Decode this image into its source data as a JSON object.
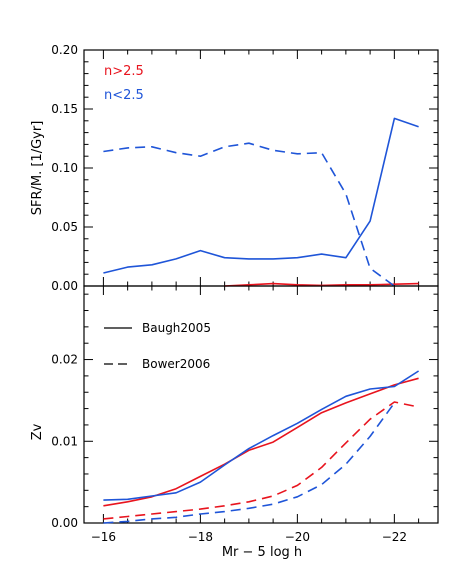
{
  "chart_data": [
    {
      "type": "line",
      "ylabel": "SFR/M. [1/Gyr]",
      "xlim": [
        -15.6,
        -22.9
      ],
      "ylim": [
        0,
        0.2
      ],
      "xticks": [
        -16,
        -18,
        -20,
        -22
      ],
      "xtick_labels": [
        "",
        "",
        "",
        ""
      ],
      "yticks": [
        0,
        0.05,
        0.1,
        0.15,
        0.2
      ],
      "ytick_labels": [
        "0.00",
        "0.05",
        "0.10",
        "0.15",
        "0.20"
      ],
      "legend_position": "top-left",
      "series": [
        {
          "name": "n>2.5",
          "color": "#e8141e",
          "style": "solid",
          "x": [
            -18.5,
            -19,
            -19.5,
            -20,
            -20.5,
            -21,
            -21.5,
            -22,
            -22.5
          ],
          "y": [
            0.0,
            0.001,
            0.002,
            0.001,
            0.0005,
            0.001,
            0.001,
            0.0015,
            0.002
          ]
        },
        {
          "name": "n<2.5",
          "color": "#1f55d8",
          "style": "solid",
          "x": [
            -16,
            -16.5,
            -17,
            -17.5,
            -18,
            -18.5,
            -19,
            -19.5,
            -20,
            -20.5,
            -21,
            -21.5,
            -22,
            -22.5
          ],
          "y": [
            0.011,
            0.016,
            0.018,
            0.023,
            0.03,
            0.024,
            0.023,
            0.023,
            0.024,
            0.027,
            0.024,
            0.055,
            0.142,
            0.135
          ]
        },
        {
          "name": "",
          "color": "#1f55d8",
          "style": "dashed",
          "x": [
            -16,
            -16.5,
            -17,
            -17.5,
            -18,
            -18.5,
            -19,
            -19.5,
            -20,
            -20.5,
            -21,
            -21.5,
            -22
          ],
          "y": [
            0.114,
            0.117,
            0.118,
            0.113,
            0.11,
            0.118,
            0.121,
            0.115,
            0.112,
            0.113,
            0.078,
            0.015,
            0.0
          ]
        }
      ]
    },
    {
      "type": "line",
      "xlabel": "Mr − 5 log h",
      "ylabel": "Zv",
      "xlim": [
        -15.6,
        -22.9
      ],
      "ylim": [
        0,
        0.029
      ],
      "xticks": [
        -16,
        -18,
        -20,
        -22
      ],
      "xtick_labels": [
        "−16",
        "−18",
        "−20",
        "−22"
      ],
      "yticks": [
        0,
        0.01,
        0.02
      ],
      "ytick_labels": [
        "0.00",
        "0.01",
        "0.02"
      ],
      "legend_position": "top-left",
      "legend": [
        {
          "label": "Baugh2005",
          "style": "solid"
        },
        {
          "label": "Bower2006",
          "style": "dashed"
        }
      ],
      "series": [
        {
          "name": "",
          "color": "#e8141e",
          "style": "solid",
          "x": [
            -16,
            -16.5,
            -17,
            -17.5,
            -18,
            -18.5,
            -19,
            -19.5,
            -20,
            -20.5,
            -21,
            -21.5,
            -22,
            -22.5
          ],
          "y": [
            0.0021,
            0.0026,
            0.0032,
            0.0042,
            0.0057,
            0.0072,
            0.0089,
            0.0099,
            0.0117,
            0.0135,
            0.0147,
            0.0158,
            0.0169,
            0.0177
          ]
        },
        {
          "name": "",
          "color": "#1f55d8",
          "style": "solid",
          "x": [
            -16,
            -16.5,
            -17,
            -17.5,
            -18,
            -18.5,
            -19,
            -19.5,
            -20,
            -20.5,
            -21,
            -21.5,
            -22,
            -22.5
          ],
          "y": [
            0.0028,
            0.0029,
            0.0033,
            0.0037,
            0.005,
            0.0071,
            0.0091,
            0.0107,
            0.0122,
            0.0139,
            0.0155,
            0.0164,
            0.0167,
            0.0186
          ]
        },
        {
          "name": "",
          "color": "#e8141e",
          "style": "dashed",
          "x": [
            -16,
            -16.5,
            -17,
            -17.5,
            -18,
            -18.5,
            -19,
            -19.5,
            -20,
            -20.5,
            -21,
            -21.5,
            -22,
            -22.5
          ],
          "y": [
            0.0005,
            0.0008,
            0.0011,
            0.0014,
            0.0017,
            0.0021,
            0.0026,
            0.0033,
            0.0046,
            0.0068,
            0.0098,
            0.0127,
            0.0148,
            0.0142
          ]
        },
        {
          "name": "",
          "color": "#1f55d8",
          "style": "dashed",
          "x": [
            -16,
            -16.5,
            -17,
            -17.5,
            -18,
            -18.5,
            -19,
            -19.5,
            -20,
            -20.5,
            -21,
            -21.5,
            -22
          ],
          "y": [
            0.0,
            0.0002,
            0.0005,
            0.0007,
            0.0011,
            0.0014,
            0.0018,
            0.0023,
            0.0032,
            0.0047,
            0.0072,
            0.0106,
            0.0147
          ]
        }
      ]
    }
  ]
}
